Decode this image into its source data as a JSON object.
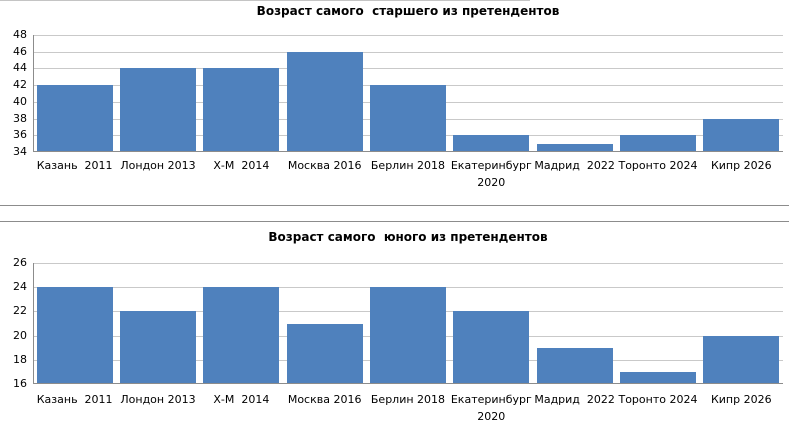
{
  "colors": {
    "bar": "#4F81BD",
    "gridline": "#C9C9C9",
    "axis_line": "#8C8C8C",
    "divider": "#8C8C8C",
    "top_border": "#C4C4C4",
    "text": "#000000",
    "background": "#FFFFFF"
  },
  "chart_data": [
    {
      "type": "bar",
      "title": "Возраст самого  старшего из претендентов",
      "categories": [
        "Казань  2011",
        "Лондон 2013",
        "Х-М  2014",
        "Москва 2016",
        "Берлин 2018",
        "Екатеринбург 2020",
        "Мадрид  2022",
        "Торонто 2024",
        "Кипр 2026"
      ],
      "values": [
        42,
        44,
        44,
        46,
        42,
        36,
        35,
        36,
        38
      ],
      "xlabel": "",
      "ylabel": "",
      "ylim": [
        34,
        48
      ],
      "yticks": [
        34,
        36,
        38,
        40,
        42,
        44,
        46,
        48
      ],
      "grid": true,
      "legend": "none",
      "bar_color": "#4F81BD"
    },
    {
      "type": "bar",
      "title": "Возраст самого  юного из претендентов",
      "categories": [
        "Казань  2011",
        "Лондон 2013",
        "Х-М  2014",
        "Москва 2016",
        "Берлин 2018",
        "Екатеринбург 2020",
        "Мадрид  2022",
        "Торонто 2024",
        "Кипр 2026"
      ],
      "values": [
        24,
        22,
        24,
        21,
        24,
        22,
        19,
        17,
        20
      ],
      "xlabel": "",
      "ylabel": "",
      "ylim": [
        16,
        26
      ],
      "yticks": [
        16,
        18,
        20,
        22,
        24,
        26
      ],
      "grid": true,
      "legend": "none",
      "bar_color": "#4F81BD"
    }
  ]
}
